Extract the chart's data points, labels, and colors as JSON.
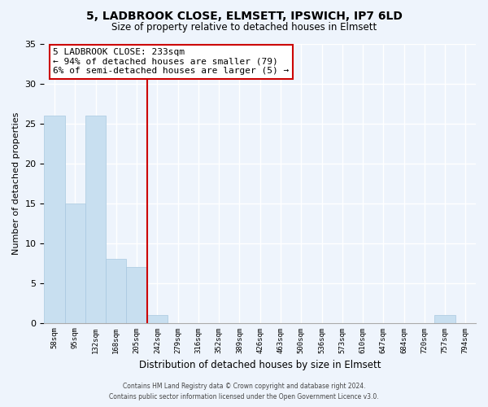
{
  "title": "5, LADBROOK CLOSE, ELMSETT, IPSWICH, IP7 6LD",
  "subtitle": "Size of property relative to detached houses in Elmsett",
  "xlabel": "Distribution of detached houses by size in Elmsett",
  "ylabel": "Number of detached properties",
  "bar_color": "#c8dff0",
  "bar_edge_color": "#a8c8e0",
  "bin_labels": [
    "58sqm",
    "95sqm",
    "132sqm",
    "168sqm",
    "205sqm",
    "242sqm",
    "279sqm",
    "316sqm",
    "352sqm",
    "389sqm",
    "426sqm",
    "463sqm",
    "500sqm",
    "536sqm",
    "573sqm",
    "610sqm",
    "647sqm",
    "684sqm",
    "720sqm",
    "757sqm",
    "794sqm"
  ],
  "bar_heights": [
    26,
    15,
    26,
    8,
    7,
    1,
    0,
    0,
    0,
    0,
    0,
    0,
    0,
    0,
    0,
    0,
    0,
    0,
    0,
    1,
    0
  ],
  "ylim": [
    0,
    35
  ],
  "yticks": [
    0,
    5,
    10,
    15,
    20,
    25,
    30,
    35
  ],
  "vline_bin_index": 5,
  "vline_color": "#cc0000",
  "annotation_title": "5 LADBROOK CLOSE: 233sqm",
  "annotation_line1": "← 94% of detached houses are smaller (79)",
  "annotation_line2": "6% of semi-detached houses are larger (5) →",
  "annotation_box_color": "#ffffff",
  "annotation_box_edge": "#cc0000",
  "footer_line1": "Contains HM Land Registry data © Crown copyright and database right 2024.",
  "footer_line2": "Contains public sector information licensed under the Open Government Licence v3.0.",
  "background_color": "#eef4fc",
  "plot_bg_color": "#eef4fc",
  "grid_color": "#ffffff"
}
